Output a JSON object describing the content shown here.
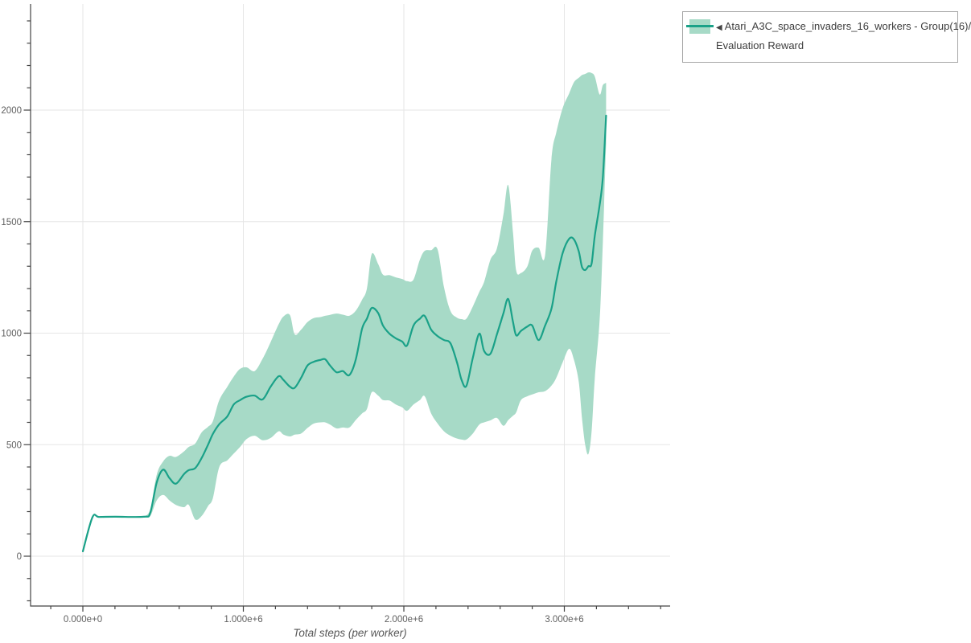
{
  "legend": {
    "collapse_icon": "◀",
    "series_name": "Atari_A3C_space_invaders_16_workers - Group(16)/",
    "metric_name": "Evaluation Reward"
  },
  "colors": {
    "line": "#1aa188",
    "band": "#a7dac7",
    "grid": "#e6e6e6",
    "axis": "#444444",
    "tick_label": "#5f5f5f"
  },
  "chart_data": {
    "type": "line",
    "title": "",
    "xlabel": "Total steps (per worker)",
    "ylabel": "",
    "legend_position": "outside-top-right",
    "grid": true,
    "x_ticks": [
      {
        "label": "0.000e+0",
        "value": 0
      },
      {
        "label": "1.000e+6",
        "value": 1
      },
      {
        "label": "2.000e+6",
        "value": 2
      },
      {
        "label": "3.000e+6",
        "value": 3
      }
    ],
    "y_ticks": [
      0,
      500,
      1000,
      1500,
      2000
    ],
    "x_minor_step": 0.2,
    "y_minor_step": 100,
    "x_range_millions": [
      -0.33,
      3.66
    ],
    "y_range": [
      -223,
      2476
    ],
    "series": [
      {
        "name": "Atari_A3C_space_invaders_16_workers - Group(16)/Evaluation Reward",
        "color": "#1aa188",
        "band_color": "#a7dac7",
        "x_millions": [
          0,
          0.06,
          0.1,
          0.2,
          0.38,
          0.42,
          0.46,
          0.5,
          0.54,
          0.58,
          0.63,
          0.66,
          0.7,
          0.74,
          0.78,
          0.81,
          0.85,
          0.9,
          0.94,
          0.98,
          1.02,
          1.07,
          1.12,
          1.17,
          1.22,
          1.25,
          1.29,
          1.32,
          1.36,
          1.4,
          1.44,
          1.48,
          1.51,
          1.54,
          1.58,
          1.62,
          1.66,
          1.7,
          1.74,
          1.77,
          1.8,
          1.84,
          1.87,
          1.91,
          1.95,
          1.99,
          2.02,
          2.06,
          2.1,
          2.13,
          2.17,
          2.21,
          2.25,
          2.29,
          2.33,
          2.36,
          2.39,
          2.43,
          2.47,
          2.5,
          2.54,
          2.58,
          2.62,
          2.65,
          2.68,
          2.7,
          2.73,
          2.77,
          2.8,
          2.84,
          2.88,
          2.92,
          2.95,
          2.99,
          3.03,
          3.06,
          3.09,
          3.11,
          3.13,
          3.15,
          3.17,
          3.19,
          3.22,
          3.24,
          3.26
        ],
        "mean": [
          22,
          175,
          176,
          177,
          177,
          195,
          330,
          388,
          350,
          325,
          368,
          386,
          395,
          440,
          500,
          548,
          592,
          627,
          680,
          700,
          715,
          720,
          703,
          760,
          807,
          790,
          760,
          755,
          800,
          855,
          872,
          880,
          883,
          855,
          825,
          830,
          812,
          880,
          1020,
          1065,
          1113,
          1090,
          1034,
          998,
          977,
          962,
          945,
          1034,
          1065,
          1077,
          1016,
          987,
          969,
          955,
          872,
          790,
          764,
          890,
          998,
          920,
          908,
          995,
          1088,
          1153,
          1050,
          990,
          1010,
          1030,
          1034,
          969,
          1034,
          1110,
          1232,
          1360,
          1423,
          1420,
          1366,
          1297,
          1283,
          1300,
          1312,
          1438,
          1575,
          1700,
          1975
        ],
        "band_lower": [
          22,
          175,
          176,
          177,
          177,
          180,
          250,
          275,
          250,
          230,
          220,
          230,
          165,
          180,
          225,
          260,
          400,
          430,
          460,
          490,
          525,
          540,
          520,
          530,
          560,
          545,
          537,
          545,
          550,
          575,
          595,
          600,
          600,
          590,
          573,
          577,
          577,
          610,
          640,
          660,
          735,
          720,
          700,
          698,
          680,
          667,
          652,
          680,
          700,
          717,
          640,
          595,
          560,
          540,
          528,
          523,
          523,
          550,
          590,
          600,
          609,
          620,
          585,
          610,
          630,
          645,
          700,
          717,
          725,
          735,
          740,
          765,
          800,
          870,
          930,
          880,
          780,
          620,
          500,
          458,
          560,
          800,
          1060,
          1410,
          1850
        ],
        "band_upper": [
          22,
          175,
          176,
          177,
          177,
          210,
          365,
          425,
          450,
          445,
          470,
          490,
          505,
          555,
          580,
          605,
          700,
          760,
          805,
          840,
          847,
          830,
          885,
          960,
          1040,
          1075,
          1081,
          995,
          1016,
          1050,
          1068,
          1072,
          1078,
          1082,
          1088,
          1083,
          1078,
          1100,
          1150,
          1200,
          1355,
          1310,
          1262,
          1260,
          1250,
          1243,
          1233,
          1240,
          1330,
          1369,
          1372,
          1376,
          1207,
          1100,
          1070,
          1063,
          1065,
          1120,
          1185,
          1230,
          1330,
          1380,
          1530,
          1664,
          1450,
          1280,
          1270,
          1300,
          1370,
          1383,
          1350,
          1780,
          1900,
          2010,
          2075,
          2125,
          2145,
          2157,
          2162,
          2169,
          2166,
          2150,
          2070,
          2112,
          2122
        ]
      }
    ]
  }
}
